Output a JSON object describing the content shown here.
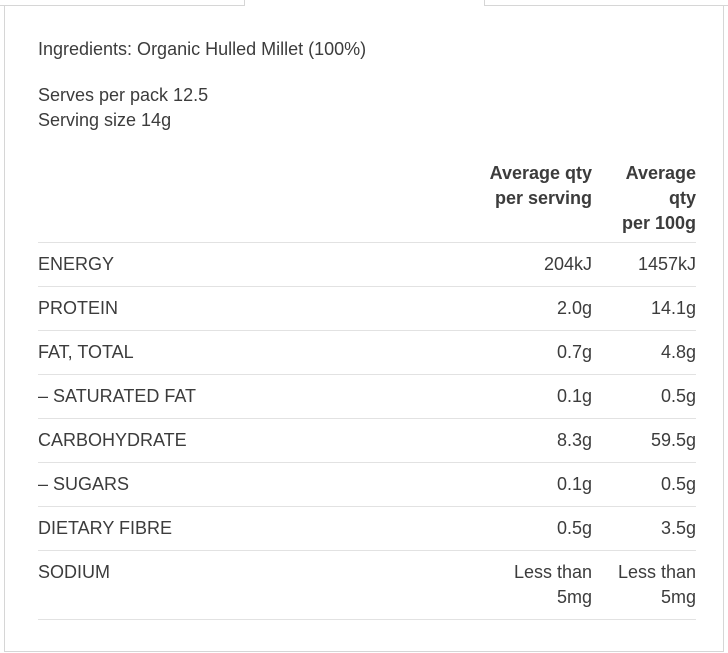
{
  "ingredients": "Ingredients: Organic Hulled Millet (100%)",
  "serves_per_pack": "Serves per pack 12.5",
  "serving_size": "Serving size 14g",
  "headers": {
    "per_serving": [
      "Average qty",
      "per serving"
    ],
    "per_100g": [
      "Average",
      "qty",
      "per 100g"
    ]
  },
  "rows": [
    {
      "name": "ENERGY",
      "serving": [
        "204kJ"
      ],
      "per100": [
        "1457kJ"
      ]
    },
    {
      "name": "PROTEIN",
      "serving": [
        "2.0g"
      ],
      "per100": [
        "14.1g"
      ]
    },
    {
      "name": "FAT, TOTAL",
      "serving": [
        "0.7g"
      ],
      "per100": [
        "4.8g"
      ]
    },
    {
      "name": "– SATURATED FAT",
      "serving": [
        "0.1g"
      ],
      "per100": [
        "0.5g"
      ]
    },
    {
      "name": "CARBOHYDRATE",
      "serving": [
        "8.3g"
      ],
      "per100": [
        "59.5g"
      ]
    },
    {
      "name": "– SUGARS",
      "serving": [
        "0.1g"
      ],
      "per100": [
        "0.5g"
      ]
    },
    {
      "name": "DIETARY FIBRE",
      "serving": [
        "0.5g"
      ],
      "per100": [
        "3.5g"
      ]
    },
    {
      "name": "SODIUM",
      "serving": [
        "Less than",
        "5mg"
      ],
      "per100": [
        "Less than",
        "5mg"
      ]
    }
  ]
}
